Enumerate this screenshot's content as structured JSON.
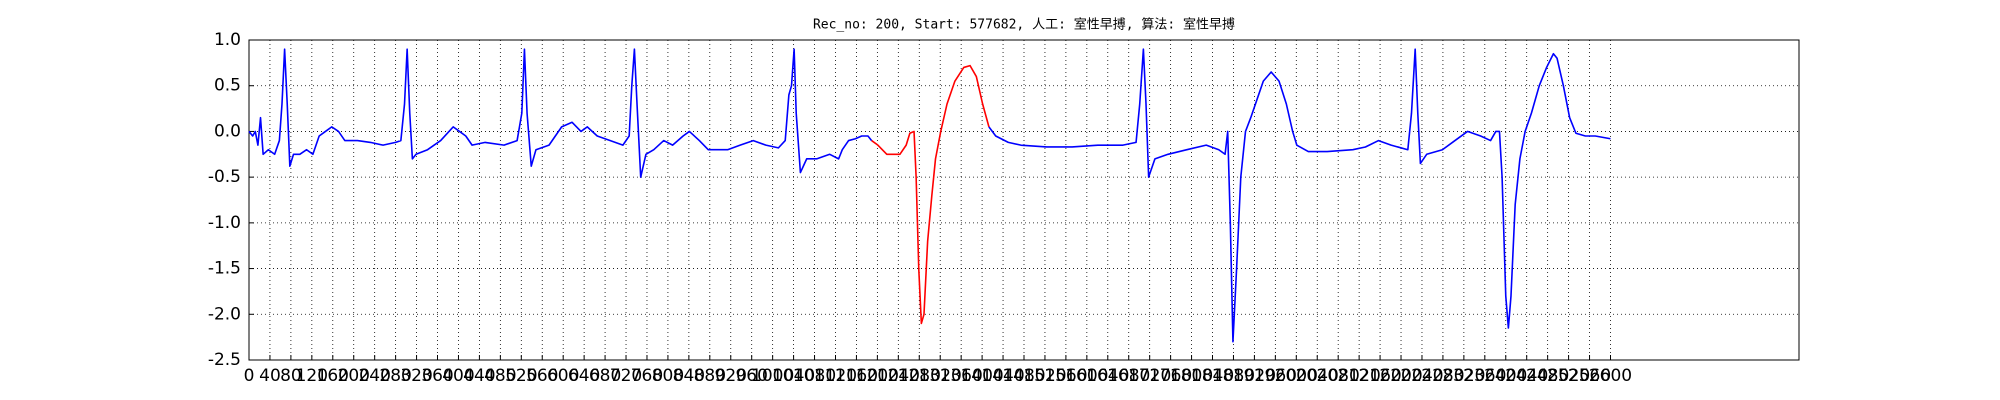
{
  "chart_data": {
    "type": "line",
    "title": "Rec_no: 200, Start: 577682, 人工: 室性早搏, 算法: 室性早搏",
    "xlim": [
      0,
      2960
    ],
    "ylim": [
      -2.5,
      1
    ],
    "xticks": [
      0,
      40,
      80,
      120,
      160,
      200,
      240,
      280,
      320,
      360,
      400,
      440,
      480,
      520,
      560,
      600,
      640,
      680,
      720,
      760,
      800,
      840,
      880,
      920,
      960,
      1000,
      1040,
      1080,
      1120,
      1160,
      1200,
      1240,
      1280,
      1320,
      1360,
      1400,
      1440,
      1480,
      1520,
      1560,
      1600,
      1640,
      1680,
      1720,
      1760,
      1800,
      1840,
      1880,
      1920,
      1960,
      2000,
      2040,
      2080,
      2120,
      2160,
      2200,
      2240,
      2280,
      2320,
      2360,
      2400,
      2440,
      2480,
      2520,
      2560,
      2600
    ],
    "yticks": [
      {
        "value": 1,
        "label": "1.0"
      },
      0.5,
      {
        "value": 0,
        "label": "0.0"
      },
      -0.5,
      {
        "value": -1,
        "label": "-1.0"
      },
      -1.5,
      {
        "value": -2,
        "label": "-2.0"
      },
      -2.5
    ],
    "grid": true,
    "series": [
      {
        "color": "#0000ff",
        "x": [
          0,
          7,
          12,
          17,
          22,
          27,
          37,
          49,
          58,
          63,
          68,
          73,
          78,
          85,
          97,
          110,
          122,
          134,
          146,
          158,
          171,
          183,
          207,
          232,
          256,
          280,
          290,
          297,
          302,
          307,
          312,
          319,
          341,
          366,
          390,
          402,
          414,
          426,
          451,
          487,
          512,
          521,
          526,
          531,
          539,
          548,
          573,
          597,
          617,
          634,
          646,
          665,
          690,
          714,
          726,
          731,
          736,
          741,
          748,
          758,
          773,
          792,
          809,
          829,
          841,
          860,
          877,
          914,
          938,
          963,
          987,
          1011,
          1024,
          1031,
          1036,
          1041,
          1045,
          1053,
          1065,
          1084,
          1109,
          1126,
          1133,
          1145,
          1158,
          1170,
          1182,
          1189
        ],
        "values": [
          0.0,
          -0.05,
          0.0,
          -0.15,
          0.15,
          -0.25,
          -0.2,
          -0.25,
          -0.1,
          0.3,
          0.9,
          0.3,
          -0.38,
          -0.25,
          -0.25,
          -0.2,
          -0.25,
          -0.05,
          0.0,
          0.05,
          0.0,
          -0.1,
          -0.1,
          -0.12,
          -0.15,
          -0.12,
          -0.1,
          0.3,
          0.9,
          0.2,
          -0.3,
          -0.25,
          -0.2,
          -0.1,
          0.05,
          0.0,
          -0.05,
          -0.15,
          -0.12,
          -0.15,
          -0.1,
          0.2,
          0.9,
          0.2,
          -0.38,
          -0.2,
          -0.15,
          0.05,
          0.1,
          0.0,
          0.05,
          -0.05,
          -0.1,
          -0.15,
          -0.05,
          0.5,
          0.9,
          0.3,
          -0.5,
          -0.25,
          -0.2,
          -0.1,
          -0.15,
          -0.05,
          0.0,
          -0.1,
          -0.2,
          -0.2,
          -0.15,
          -0.1,
          -0.15,
          -0.18,
          -0.1,
          0.4,
          0.5,
          0.9,
          0.2,
          -0.45,
          -0.3,
          -0.3,
          -0.25,
          -0.3,
          -0.2,
          -0.1,
          -0.08,
          -0.05,
          -0.05,
          -0.1
        ]
      },
      {
        "color": "#ff0000",
        "x": [
          1189,
          1201,
          1218,
          1243,
          1255,
          1262,
          1270,
          1274,
          1279,
          1284,
          1289,
          1296,
          1304,
          1311,
          1321,
          1333,
          1348,
          1365,
          1377,
          1389,
          1401,
          1413
        ],
        "values": [
          -0.1,
          -0.15,
          -0.25,
          -0.25,
          -0.15,
          -0.02,
          0.0,
          -0.5,
          -1.5,
          -2.1,
          -2.0,
          -1.2,
          -0.7,
          -0.3,
          0.0,
          0.3,
          0.55,
          0.7,
          0.72,
          0.6,
          0.3,
          0.05
        ]
      },
      {
        "color": "#0000ff",
        "x": [
          1413,
          1426,
          1450,
          1474,
          1523,
          1572,
          1621,
          1669,
          1694,
          1701,
          1708,
          1713,
          1718,
          1730,
          1755,
          1791,
          1828,
          1852,
          1864,
          1869,
          1874,
          1879,
          1886,
          1894,
          1903,
          1913,
          1925,
          1937,
          1952,
          1967,
          1981,
          1993,
          2001,
          2023,
          2059,
          2108,
          2132,
          2157,
          2181,
          2213,
          2220,
          2227,
          2232,
          2237,
          2249,
          2279,
          2303,
          2327,
          2352,
          2371,
          2381,
          2388,
          2393,
          2400,
          2405,
          2410,
          2418,
          2427,
          2437,
          2449,
          2464,
          2478,
          2491,
          2498,
          2510,
          2522,
          2534,
          2552,
          2571,
          2600
        ],
        "values": [
          0.05,
          -0.05,
          -0.12,
          -0.15,
          -0.17,
          -0.17,
          -0.15,
          -0.15,
          -0.12,
          0.3,
          0.9,
          0.3,
          -0.5,
          -0.3,
          -0.25,
          -0.2,
          -0.15,
          -0.2,
          -0.25,
          0.0,
          -1.0,
          -2.3,
          -1.5,
          -0.5,
          0.0,
          0.15,
          0.35,
          0.55,
          0.65,
          0.55,
          0.3,
          0.0,
          -0.15,
          -0.22,
          -0.22,
          -0.2,
          -0.17,
          -0.1,
          -0.15,
          -0.2,
          0.2,
          0.9,
          0.2,
          -0.35,
          -0.25,
          -0.2,
          -0.1,
          0.0,
          -0.05,
          -0.1,
          0.0,
          0.0,
          -0.5,
          -1.8,
          -2.15,
          -1.8,
          -0.8,
          -0.3,
          0.0,
          0.2,
          0.5,
          0.7,
          0.85,
          0.8,
          0.5,
          0.15,
          -0.02,
          -0.05,
          -0.05,
          -0.08
        ]
      }
    ]
  }
}
